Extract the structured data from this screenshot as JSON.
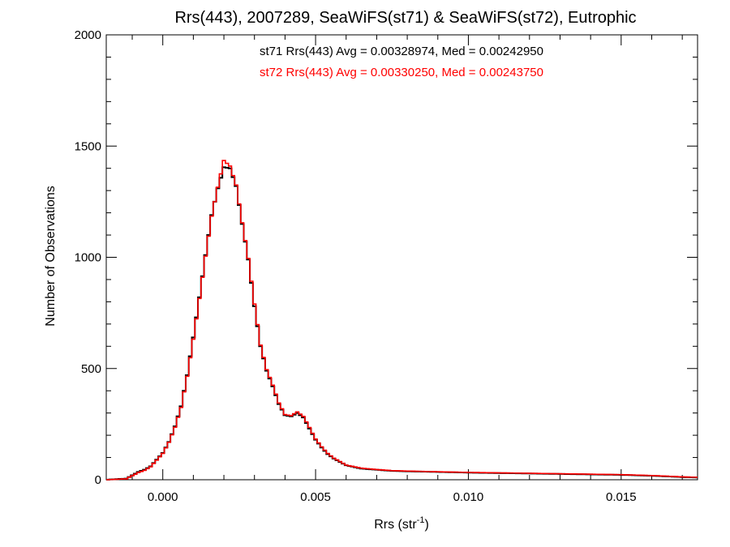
{
  "chart_data": {
    "type": "line",
    "title": "Rrs(443), 2007289, SeaWiFS(st71) & SeaWiFS(st72), Eutrophic",
    "xlabel": "Rrs (str",
    "xlabel_sup": "-1",
    "xlabel_close": ")",
    "ylabel": "Number of Observations",
    "xlim": [
      -0.00185,
      0.0175
    ],
    "ylim": [
      0,
      2000
    ],
    "x_ticks": [
      0.0,
      0.005,
      0.01,
      0.015
    ],
    "x_tick_labels": [
      "0.000",
      "0.005",
      "0.010",
      "0.015"
    ],
    "y_ticks": [
      0,
      500,
      1000,
      1500,
      2000
    ],
    "y_tick_labels": [
      "0",
      "500",
      "1000",
      "1500",
      "2000"
    ],
    "grid": false,
    "annotations": [
      {
        "text": "st71 Rrs(443) Avg = 0.00328974, Med = 0.00242950",
        "color": "#000000"
      },
      {
        "text": "st72 Rrs(443) Avg = 0.00330250, Med = 0.00243750",
        "color": "#ff0000"
      }
    ],
    "step": "hist",
    "series": [
      {
        "name": "st71",
        "color": "#000000",
        "x": [
          -0.00185,
          -0.0012,
          -0.001,
          -0.0008,
          -0.0006,
          -0.0004,
          -0.0002,
          0.0,
          0.0002,
          0.0004,
          0.0006,
          0.0008,
          0.001,
          0.0012,
          0.0014,
          0.0016,
          0.0018,
          0.002,
          0.0022,
          0.0024,
          0.0026,
          0.0028,
          0.003,
          0.0032,
          0.0034,
          0.0036,
          0.0038,
          0.004,
          0.0042,
          0.0044,
          0.0046,
          0.0048,
          0.005,
          0.0052,
          0.0054,
          0.0056,
          0.0058,
          0.006,
          0.0065,
          0.007,
          0.0075,
          0.008,
          0.009,
          0.01,
          0.011,
          0.012,
          0.013,
          0.014,
          0.015,
          0.016,
          0.017,
          0.0175
        ],
        "y": [
          0,
          5,
          20,
          35,
          45,
          60,
          90,
          120,
          170,
          240,
          330,
          470,
          640,
          820,
          1010,
          1190,
          1310,
          1405,
          1400,
          1320,
          1150,
          990,
          780,
          600,
          490,
          420,
          340,
          290,
          285,
          300,
          280,
          230,
          180,
          145,
          115,
          95,
          80,
          65,
          50,
          45,
          40,
          38,
          35,
          32,
          30,
          28,
          26,
          24,
          22,
          18,
          12,
          10
        ]
      },
      {
        "name": "st72",
        "color": "#ff0000",
        "x": [
          -0.00185,
          -0.0012,
          -0.001,
          -0.0008,
          -0.0006,
          -0.0004,
          -0.0002,
          0.0,
          0.0002,
          0.0004,
          0.0006,
          0.0008,
          0.001,
          0.0012,
          0.0014,
          0.0016,
          0.0018,
          0.002,
          0.0022,
          0.0024,
          0.0026,
          0.0028,
          0.003,
          0.0032,
          0.0034,
          0.0036,
          0.0038,
          0.004,
          0.0042,
          0.0044,
          0.0046,
          0.0048,
          0.005,
          0.0052,
          0.0054,
          0.0056,
          0.0058,
          0.006,
          0.0065,
          0.007,
          0.0075,
          0.008,
          0.009,
          0.01,
          0.011,
          0.012,
          0.013,
          0.014,
          0.015,
          0.016,
          0.017,
          0.0175
        ],
        "y": [
          0,
          4,
          18,
          32,
          42,
          58,
          88,
          118,
          168,
          236,
          325,
          465,
          632,
          815,
          1005,
          1185,
          1315,
          1435,
          1410,
          1325,
          1155,
          995,
          790,
          605,
          495,
          425,
          345,
          293,
          288,
          305,
          285,
          235,
          183,
          148,
          118,
          97,
          82,
          66,
          52,
          46,
          41,
          39,
          36,
          33,
          31,
          29,
          27,
          25,
          23,
          19,
          13,
          11
        ]
      }
    ]
  }
}
